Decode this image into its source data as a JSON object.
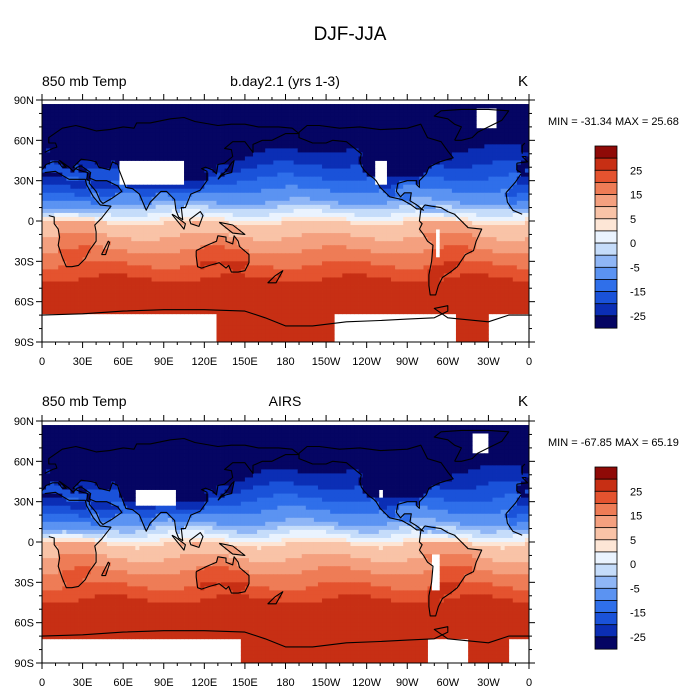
{
  "figure": {
    "title": "DJF-JJA"
  },
  "chart_data": [
    {
      "type": "heatmap",
      "left_title": "850 mb Temp",
      "center_title": "b.day2.1 (yrs 1-3)",
      "right_title": "K",
      "stats": "MIN = -31.34 MAX =  25.68",
      "x_ticks": [
        "0",
        "30E",
        "60E",
        "90E",
        "120E",
        "150E",
        "180",
        "150W",
        "120W",
        "90W",
        "60W",
        "30W",
        "0"
      ],
      "y_ticks": [
        "90N",
        "60N",
        "30N",
        "0",
        "30S",
        "60S",
        "90S"
      ],
      "xlim": [
        0,
        360
      ],
      "ylim": [
        -90,
        90
      ],
      "colorbar_labels": [
        "25",
        "15",
        "5",
        "0",
        "-5",
        "-15",
        "-25"
      ],
      "colorbar_levels": [
        -30,
        -25,
        -20,
        -15,
        -10,
        -5,
        -2.5,
        0,
        2.5,
        5,
        10,
        15,
        20,
        25,
        30
      ],
      "value_range": [
        -31.34,
        25.68
      ]
    },
    {
      "type": "heatmap",
      "left_title": "850 mb Temp",
      "center_title": "AIRS",
      "right_title": "K",
      "stats": "MIN = -67.85 MAX =  65.19",
      "x_ticks": [
        "0",
        "30E",
        "60E",
        "90E",
        "120E",
        "150E",
        "180",
        "150W",
        "120W",
        "90W",
        "60W",
        "30W",
        "0"
      ],
      "y_ticks": [
        "90N",
        "60N",
        "30N",
        "0",
        "30S",
        "60S",
        "90S"
      ],
      "xlim": [
        0,
        360
      ],
      "ylim": [
        -90,
        90
      ],
      "colorbar_labels": [
        "25",
        "15",
        "5",
        "0",
        "-5",
        "-15",
        "-25"
      ],
      "colorbar_levels": [
        -30,
        -25,
        -20,
        -15,
        -10,
        -5,
        -2.5,
        0,
        2.5,
        5,
        10,
        15,
        20,
        25,
        30
      ],
      "value_range": [
        -67.85,
        65.19
      ]
    }
  ],
  "colors": {
    "scale": [
      "#050563",
      "#0b2eb5",
      "#1a52d9",
      "#2f6fea",
      "#5b93f2",
      "#8fb6f6",
      "#c5dcfa",
      "#eaf3fe",
      "#fde6d6",
      "#f9c3a7",
      "#f4a07f",
      "#ee7c56",
      "#e4532f",
      "#c72f14",
      "#8f0a07"
    ],
    "missing": "#ffffff",
    "coast": "#000000"
  }
}
